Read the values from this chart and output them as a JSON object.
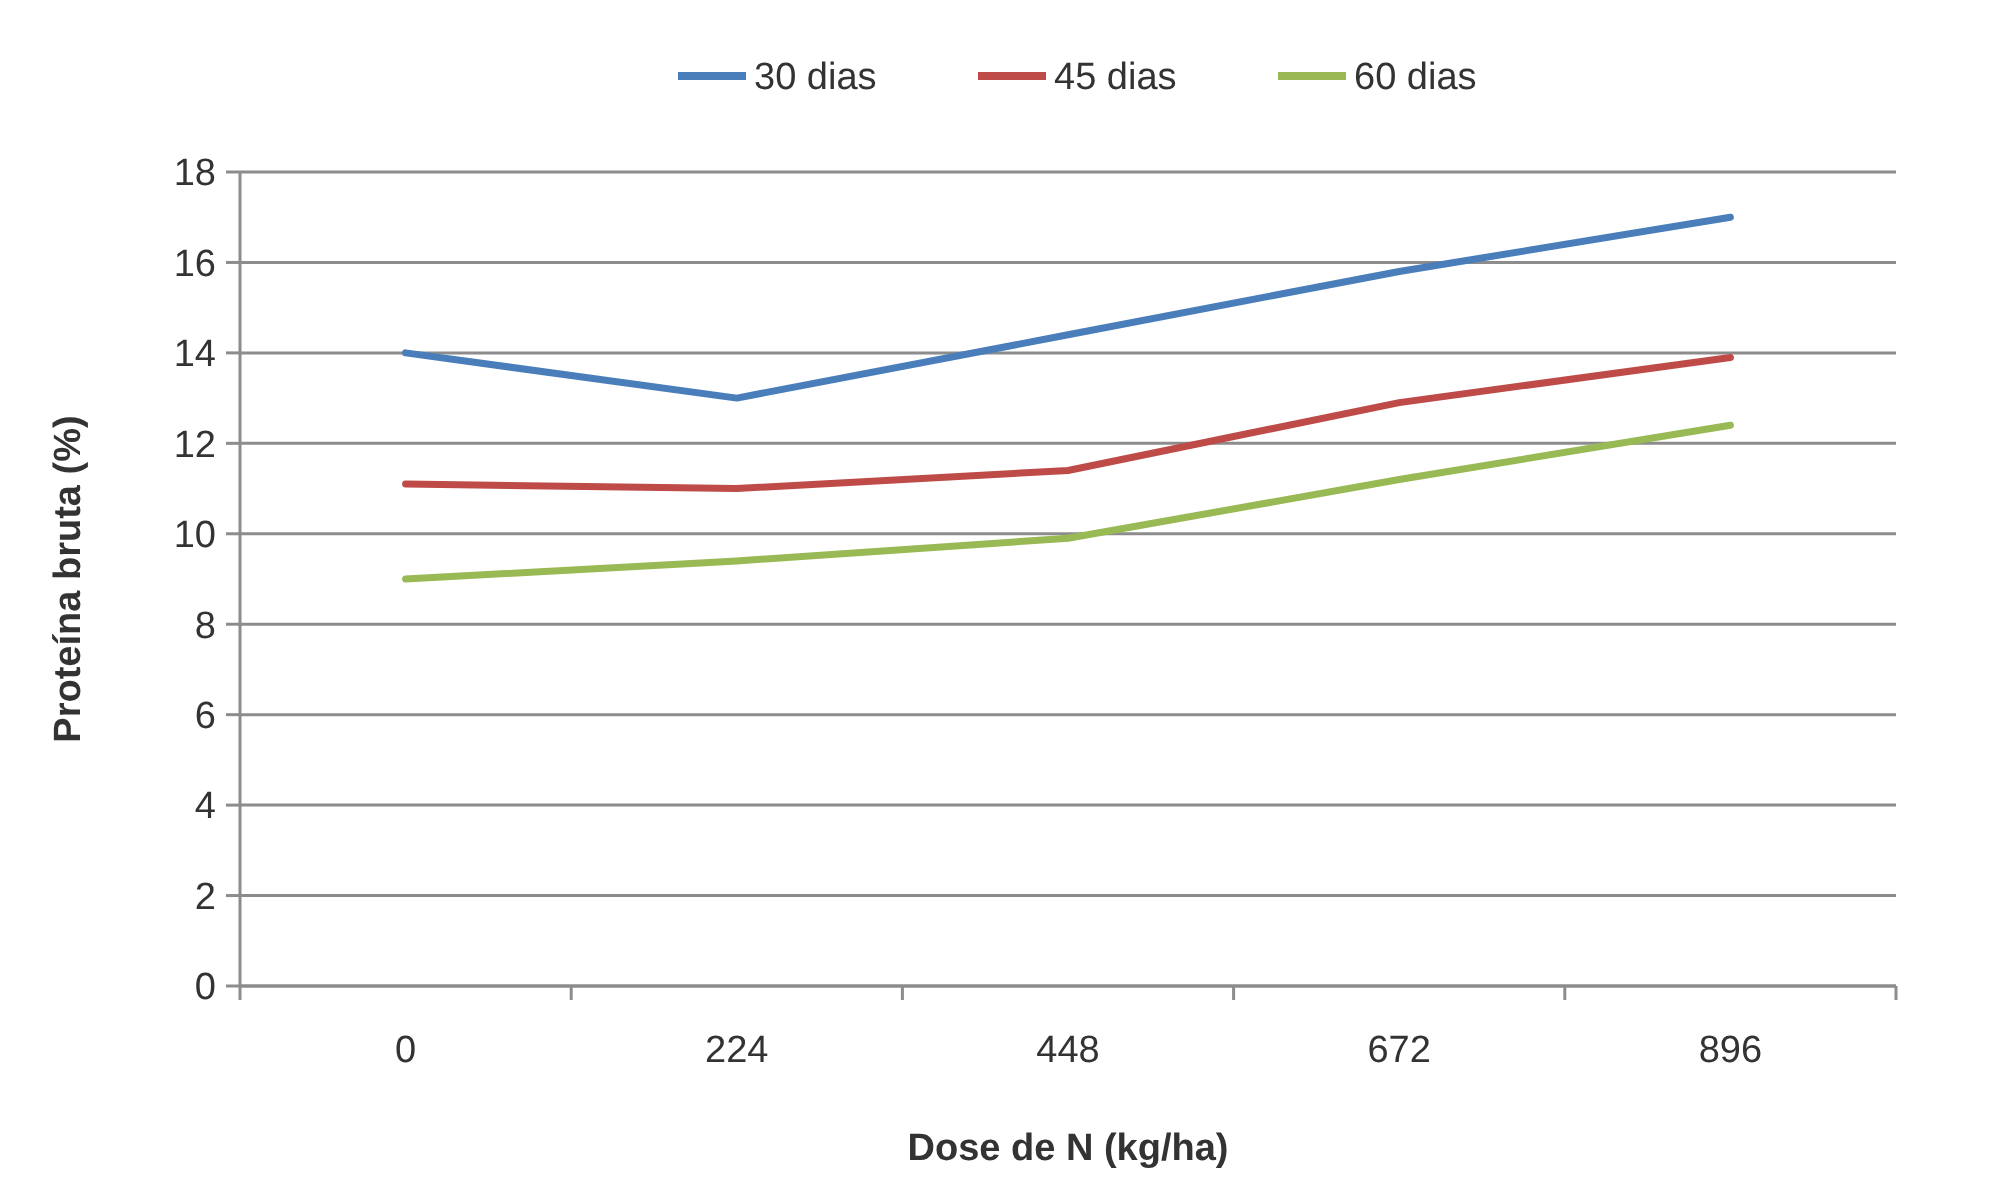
{
  "chart_data": {
    "type": "line",
    "xlabel": "Dose de N (kg/ha)",
    "ylabel": "Proteína bruta (%)",
    "categories": [
      "0",
      "224",
      "448",
      "672",
      "896"
    ],
    "series": [
      {
        "name": "30 dias",
        "color": "#4a7ebb",
        "values": [
          14.0,
          13.0,
          14.4,
          15.8,
          17.0
        ]
      },
      {
        "name": "45 dias",
        "color": "#be4b48",
        "values": [
          11.1,
          11.0,
          11.4,
          12.9,
          13.9
        ]
      },
      {
        "name": "60 dias",
        "color": "#98b954",
        "values": [
          9.0,
          9.4,
          9.9,
          11.2,
          12.4
        ]
      }
    ],
    "ylim": [
      0,
      18
    ],
    "yticks": [
      0,
      2,
      4,
      6,
      8,
      10,
      12,
      14,
      16,
      18
    ],
    "grid": "y",
    "legend": "top",
    "marker": "none",
    "line_style": "solid"
  }
}
